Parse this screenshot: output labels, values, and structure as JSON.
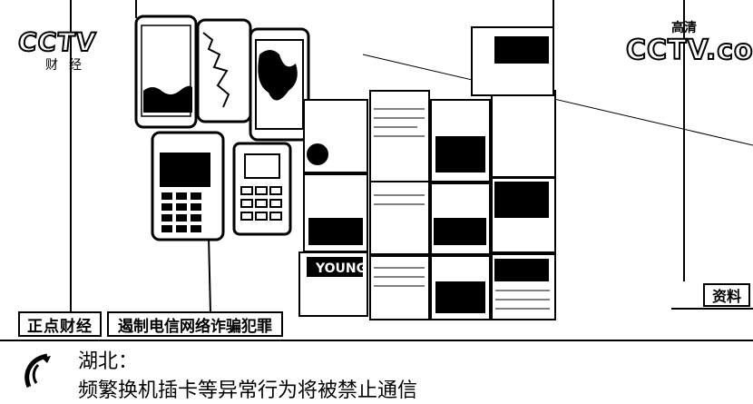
{
  "logo_left": {
    "mark": "CCTV",
    "channel": "财经"
  },
  "logo_right": {
    "mark": "CCTV.com",
    "hd": "高清"
  },
  "tag": "资料",
  "program": "正点财经",
  "headline": "遏制电信网络诈骗犯罪",
  "caption": {
    "location": "湖北：",
    "text": "频繁换机插卡等异常行为将被禁止通信"
  }
}
